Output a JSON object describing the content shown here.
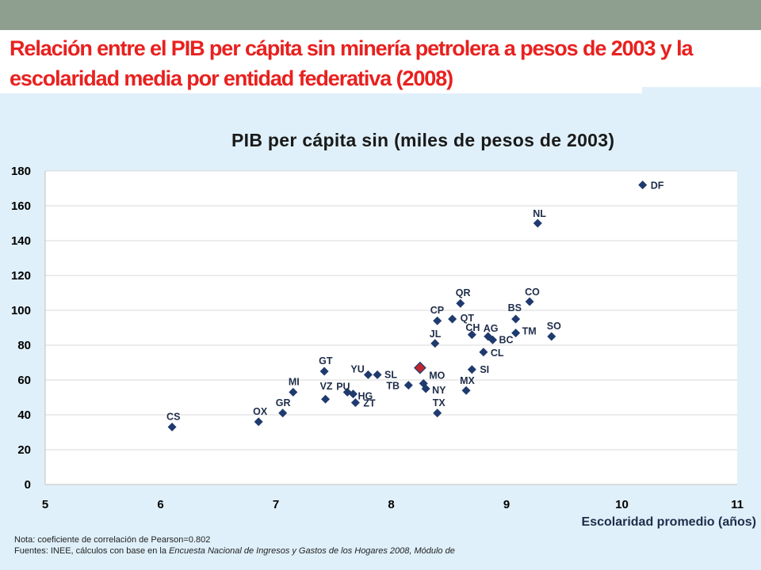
{
  "slide": {
    "title": "Relación entre el PIB per cápita sin minería petrolera a pesos de 2003 y la escolaridad media por entidad federativa (2008)",
    "note": "Nota: coeficiente de correlación de Pearson=0.802",
    "source_prefix": "Fuentes: INEE, cálculos con base en la ",
    "source_italic": "Encuesta Nacional de Ingresos y Gastos de los Hogares 2008, Módulo de"
  },
  "colors": {
    "title": "#e8211f",
    "point": "#1f3a6e",
    "national_point": "#c0262d",
    "background": "#dff0fa",
    "top_band": "#8e9e8f"
  },
  "chart_data": {
    "type": "scatter",
    "title": "PIB per cápita sin (miles de pesos de 2003)",
    "xlabel": "Escolaridad promedio (años)",
    "ylabel": "",
    "xlim": [
      5,
      11
    ],
    "ylim": [
      0,
      180
    ],
    "x_ticks": [
      5,
      6,
      7,
      8,
      9,
      10,
      11
    ],
    "y_ticks": [
      0,
      20,
      40,
      60,
      80,
      100,
      120,
      140,
      160,
      180
    ],
    "grid": "horizontal",
    "points": [
      {
        "label": "DF",
        "x": 10.18,
        "y": 172,
        "dx": 10,
        "dy": 5
      },
      {
        "label": "NL",
        "x": 9.27,
        "y": 150,
        "dx": -6,
        "dy": -8
      },
      {
        "label": "CO",
        "x": 9.2,
        "y": 105,
        "dx": -6,
        "dy": -8
      },
      {
        "label": "QR",
        "x": 8.6,
        "y": 104,
        "dx": -6,
        "dy": -9
      },
      {
        "label": "BS",
        "x": 9.08,
        "y": 95,
        "dx": -10,
        "dy": -10
      },
      {
        "label": "CP",
        "x": 8.4,
        "y": 94,
        "dx": -9,
        "dy": -9
      },
      {
        "label": "QT",
        "x": 8.53,
        "y": 95,
        "dx": 10,
        "dy": 3
      },
      {
        "label": "CH",
        "x": 8.7,
        "y": 86,
        "dx": -8,
        "dy": -5
      },
      {
        "label": "AG",
        "x": 8.84,
        "y": 85,
        "dx": -6,
        "dy": -6
      },
      {
        "label": "TM",
        "x": 9.08,
        "y": 87,
        "dx": 8,
        "dy": 2
      },
      {
        "label": "SO",
        "x": 9.39,
        "y": 85,
        "dx": -6,
        "dy": -9
      },
      {
        "label": "BC",
        "x": 8.88,
        "y": 83,
        "dx": 8,
        "dy": 4
      },
      {
        "label": "JL",
        "x": 8.38,
        "y": 81,
        "dx": -7,
        "dy": -8
      },
      {
        "label": "CL",
        "x": 8.8,
        "y": 76,
        "dx": 9,
        "dy": 5
      },
      {
        "label": "GT",
        "x": 7.42,
        "y": 65,
        "dx": -7,
        "dy": -9
      },
      {
        "label": "SI",
        "x": 8.7,
        "y": 66,
        "dx": 10,
        "dy": 4
      },
      {
        "label": "YU",
        "x": 7.8,
        "y": 63,
        "dx": -22,
        "dy": -3
      },
      {
        "label": "SL",
        "x": 7.88,
        "y": 63,
        "dx": 9,
        "dy": 4
      },
      {
        "label": "",
        "x": 8.25,
        "y": 67,
        "national": true,
        "dx": 0,
        "dy": 0
      },
      {
        "label": "MO",
        "x": 8.28,
        "y": 58,
        "dx": 7,
        "dy": -6
      },
      {
        "label": "TB",
        "x": 8.15,
        "y": 57,
        "dx": -28,
        "dy": 5
      },
      {
        "label": "MI",
        "x": 7.15,
        "y": 53,
        "dx": -6,
        "dy": -9
      },
      {
        "label": "PU",
        "x": 7.62,
        "y": 53,
        "dx": -14,
        "dy": -3
      },
      {
        "label": "VZ",
        "x": 7.43,
        "y": 49,
        "dx": -7,
        "dy": -12
      },
      {
        "label": "HG",
        "x": 7.67,
        "y": 52,
        "dx": 6,
        "dy": 7
      },
      {
        "label": "NY",
        "x": 8.3,
        "y": 55,
        "dx": 8,
        "dy": 6
      },
      {
        "label": "MX",
        "x": 8.65,
        "y": 54,
        "dx": -8,
        "dy": -8
      },
      {
        "label": "ZT",
        "x": 7.69,
        "y": 47,
        "dx": 10,
        "dy": 5
      },
      {
        "label": "GR",
        "x": 7.06,
        "y": 41,
        "dx": -9,
        "dy": -9
      },
      {
        "label": "TX",
        "x": 8.4,
        "y": 41,
        "dx": -6,
        "dy": -9
      },
      {
        "label": "OX",
        "x": 6.85,
        "y": 36,
        "dx": -7,
        "dy": -9
      },
      {
        "label": "CS",
        "x": 6.1,
        "y": 33,
        "dx": -7,
        "dy": -9
      }
    ]
  }
}
